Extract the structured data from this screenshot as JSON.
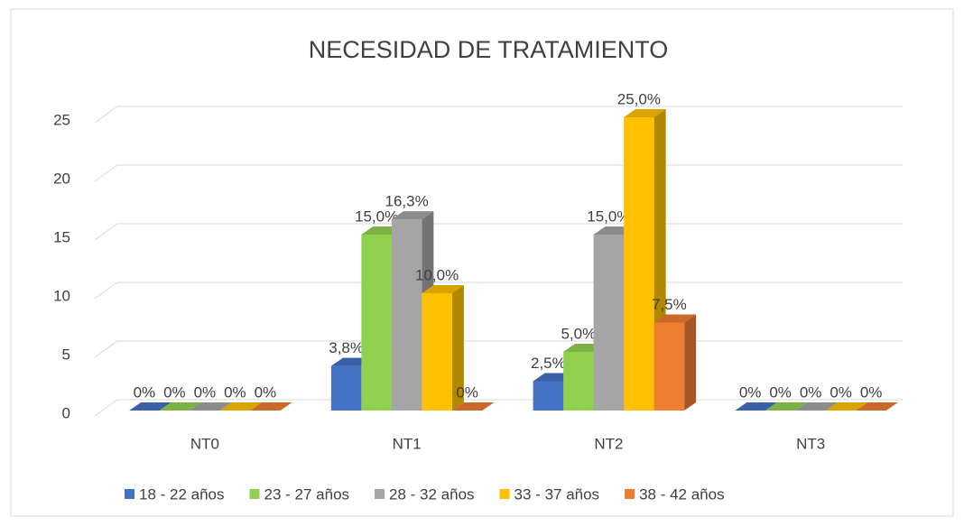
{
  "chart_data": {
    "type": "bar3d",
    "title": "NECESIDAD DE TRATAMIENTO",
    "categories": [
      "NT0",
      "NT1",
      "NT2",
      "NT3"
    ],
    "series": [
      {
        "name": "18 - 22 años",
        "color": "#4472c4",
        "values": [
          0,
          3.8,
          2.5,
          0
        ],
        "value_labels": [
          "0%",
          "3,8%",
          "2,5%",
          "0%"
        ]
      },
      {
        "name": "23 - 27 años",
        "color": "#92d050",
        "values": [
          0,
          15.0,
          5.0,
          0
        ],
        "value_labels": [
          "0%",
          "15,0%",
          "5,0%",
          "0%"
        ]
      },
      {
        "name": "28 - 32 años",
        "color": "#a5a5a5",
        "values": [
          0,
          16.3,
          15.0,
          0
        ],
        "value_labels": [
          "0%",
          "16,3%",
          "15,0%",
          "0%"
        ]
      },
      {
        "name": "33 - 37 años",
        "color": "#ffc000",
        "values": [
          0,
          10.0,
          25.0,
          0
        ],
        "value_labels": [
          "0%",
          "10,0%",
          "25,0%",
          "0%"
        ]
      },
      {
        "name": "38 - 42 años",
        "color": "#ed7d31",
        "values": [
          0,
          0,
          7.5,
          0
        ],
        "value_labels": [
          "0%",
          "0%",
          "7,5%",
          "0%"
        ]
      }
    ],
    "ylim": [
      0,
      25
    ],
    "yticks": [
      0,
      5,
      10,
      15,
      20,
      25
    ],
    "grid": true,
    "legend": "bottom"
  }
}
